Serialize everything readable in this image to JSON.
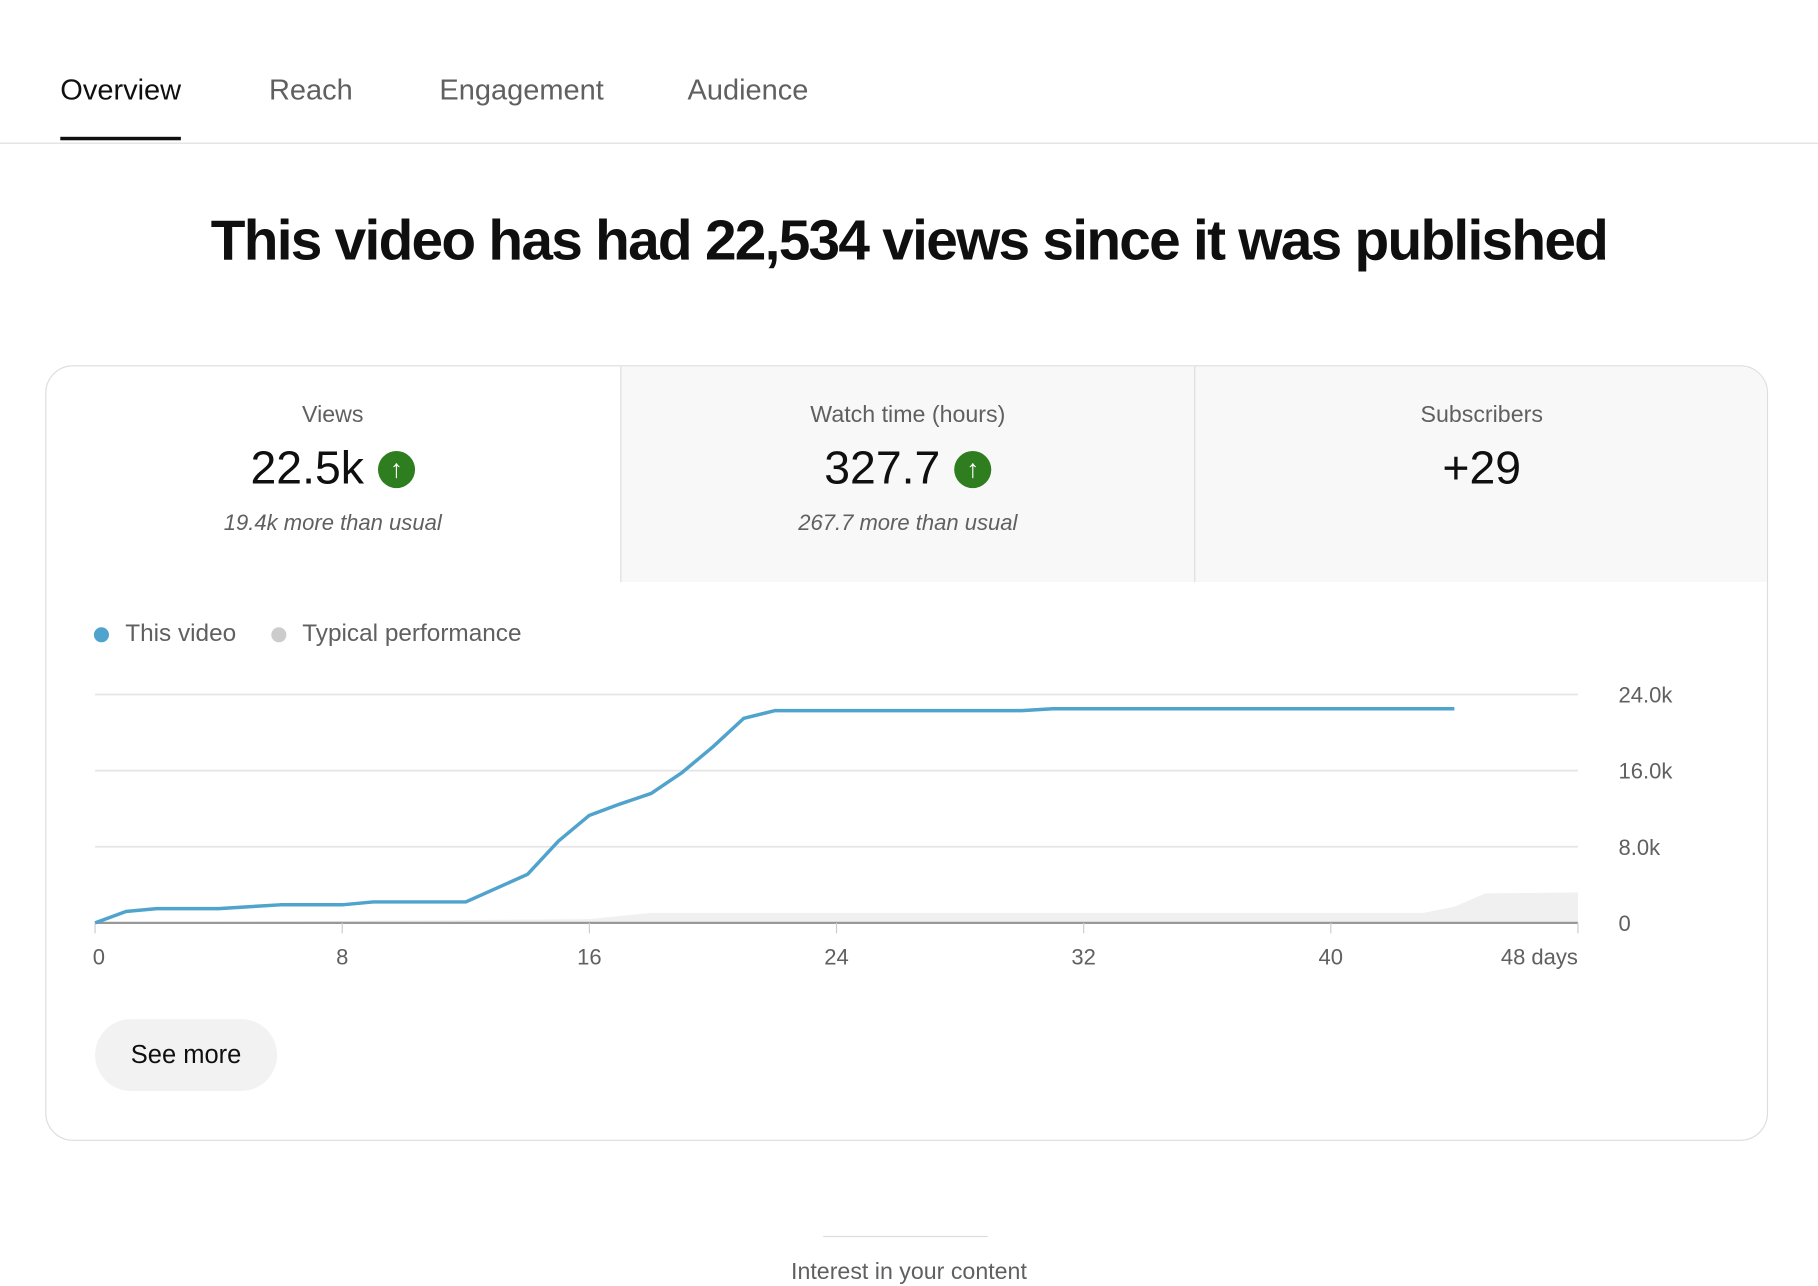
{
  "tabs": [
    {
      "label": "Overview",
      "active": true
    },
    {
      "label": "Reach"
    },
    {
      "label": "Engagement"
    },
    {
      "label": "Audience"
    }
  ],
  "headline": "This video has had 22,534 views since it was published",
  "metrics": [
    {
      "label": "Views",
      "value": "22.5k",
      "trend": "up",
      "sub": "19.4k more than usual"
    },
    {
      "label": "Watch time (hours)",
      "value": "327.7",
      "trend": "up",
      "sub": "267.7 more than usual"
    },
    {
      "label": "Subscribers",
      "value": "+29"
    }
  ],
  "colors": {
    "this_video": "#4fa3cc",
    "typical": "#cccccc",
    "trend_up": "#2e7d1f"
  },
  "chart_data": {
    "type": "line",
    "legend": [
      "This video",
      "Typical performance"
    ],
    "legend_placement": "top-left",
    "xlim": [
      0,
      48
    ],
    "ylim": [
      0,
      24000
    ],
    "x_ticks": [
      "0",
      "8",
      "16",
      "24",
      "32",
      "40",
      "48 days"
    ],
    "y_ticks": [
      "0",
      "8.0k",
      "16.0k",
      "24.0k"
    ],
    "grid": true,
    "series": [
      {
        "name": "This video",
        "type": "line",
        "points": [
          [
            0,
            0
          ],
          [
            1,
            1200
          ],
          [
            2,
            1500
          ],
          [
            4,
            1500
          ],
          [
            6,
            1900
          ],
          [
            8,
            1900
          ],
          [
            9,
            2200
          ],
          [
            12,
            2200
          ],
          [
            14,
            5100
          ],
          [
            15,
            8600
          ],
          [
            16,
            11300
          ],
          [
            17,
            12500
          ],
          [
            18,
            13600
          ],
          [
            19,
            15800
          ],
          [
            20,
            18500
          ],
          [
            21,
            21500
          ],
          [
            22,
            22300
          ],
          [
            30,
            22300
          ],
          [
            31,
            22500
          ],
          [
            44,
            22500
          ]
        ]
      },
      {
        "name": "Typical performance",
        "type": "area",
        "points": [
          [
            0,
            0
          ],
          [
            8,
            200
          ],
          [
            16,
            400
          ],
          [
            18,
            1050
          ],
          [
            43,
            1050
          ],
          [
            44,
            1700
          ],
          [
            45,
            3100
          ],
          [
            48,
            3200
          ]
        ]
      }
    ]
  },
  "see_more": "See more",
  "footer": "Interest in your content"
}
